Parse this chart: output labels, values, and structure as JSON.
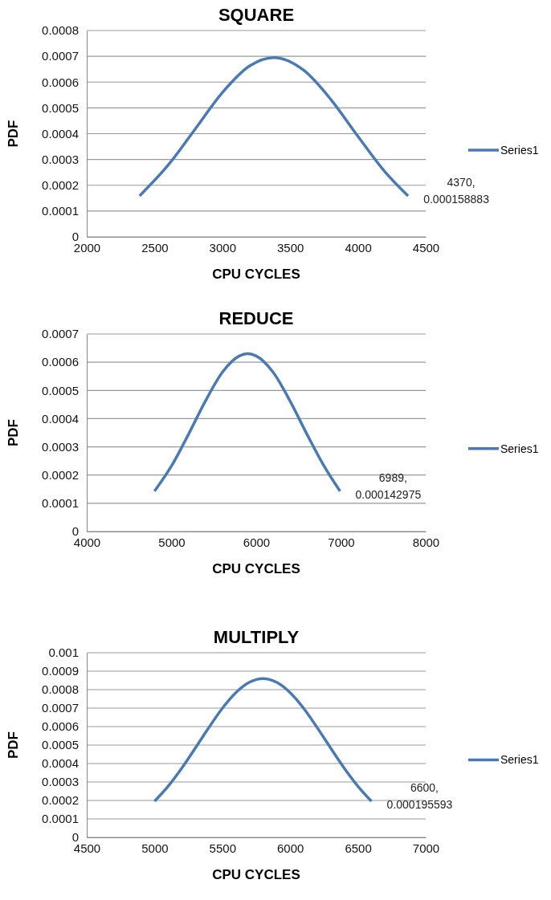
{
  "chart_data": [
    {
      "type": "line",
      "title": "SQUARE",
      "xlabel": "CPU CYCLES",
      "ylabel": "PDF",
      "xlim": [
        2000,
        4500
      ],
      "xticks": [
        2000,
        2500,
        3000,
        3500,
        4000,
        4500
      ],
      "ylim": [
        0,
        0.0008
      ],
      "yticks": [
        0,
        0.0001,
        0.0002,
        0.0003,
        0.0004,
        0.0005,
        0.0006,
        0.0007,
        0.0008
      ],
      "grid": "y",
      "legend": "right",
      "marker": "none",
      "series": [
        {
          "name": "Series1",
          "color": "#4a7ab5",
          "x": [
            2390,
            2600,
            2800,
            3000,
            3200,
            3380,
            3600,
            3800,
            4000,
            4200,
            4370
          ],
          "values": [
            0.000159,
            0.000278,
            0.000418,
            0.000559,
            0.000662,
            0.000695,
            0.000646,
            0.000533,
            0.00039,
            0.000252,
            0.000158883
          ]
        }
      ],
      "annotations": [
        {
          "text": "4370, 0.000158883",
          "x": 4370,
          "y": 0.000158883
        }
      ]
    },
    {
      "type": "line",
      "title": "REDUCE",
      "xlabel": "CPU CYCLES",
      "ylabel": "PDF",
      "xlim": [
        4000,
        8000
      ],
      "xticks": [
        4000,
        5000,
        6000,
        7000,
        8000
      ],
      "ylim": [
        0,
        0.0007
      ],
      "yticks": [
        0,
        0.0001,
        0.0002,
        0.0003,
        0.0004,
        0.0005,
        0.0006,
        0.0007
      ],
      "grid": "y",
      "legend": "right",
      "marker": "none",
      "series": [
        {
          "name": "Series1",
          "color": "#4a7ab5",
          "x": [
            4800,
            5000,
            5200,
            5400,
            5600,
            5800,
            5900,
            6000,
            6200,
            6400,
            6600,
            6800,
            6989
          ],
          "values": [
            0.000143,
            0.000232,
            0.000344,
            0.000462,
            0.000564,
            0.000622,
            0.00063,
            0.000622,
            0.000564,
            0.000462,
            0.000344,
            0.000232,
            0.000142975
          ]
        }
      ],
      "annotations": [
        {
          "text": "6989, 0.000142975",
          "x": 6989,
          "y": 0.000142975
        }
      ]
    },
    {
      "type": "line",
      "title": "MULTIPLY",
      "xlabel": "CPU CYCLES",
      "ylabel": "PDF",
      "xlim": [
        4500,
        7000
      ],
      "xticks": [
        4500,
        5000,
        5500,
        6000,
        6500,
        7000
      ],
      "ylim": [
        0,
        0.001
      ],
      "yticks": [
        0,
        0.0001,
        0.0002,
        0.0003,
        0.0004,
        0.0005,
        0.0006,
        0.0007,
        0.0008,
        0.0009,
        0.001
      ],
      "grid": "y",
      "legend": "right",
      "marker": "none",
      "series": [
        {
          "name": "Series1",
          "color": "#4a7ab5",
          "x": [
            5000,
            5100,
            5200,
            5300,
            5400,
            5500,
            5600,
            5700,
            5800,
            5900,
            6000,
            6100,
            6200,
            6300,
            6400,
            6500,
            6600
          ],
          "values": [
            0.000196,
            0.000277,
            0.000374,
            0.000483,
            0.000594,
            0.000699,
            0.000784,
            0.00084,
            0.00086,
            0.00084,
            0.000784,
            0.000699,
            0.000594,
            0.000483,
            0.000374,
            0.000277,
            0.000195593
          ]
        }
      ],
      "annotations": [
        {
          "text": "6600, 0.000195593",
          "x": 6600,
          "y": 0.000195593
        }
      ]
    }
  ]
}
